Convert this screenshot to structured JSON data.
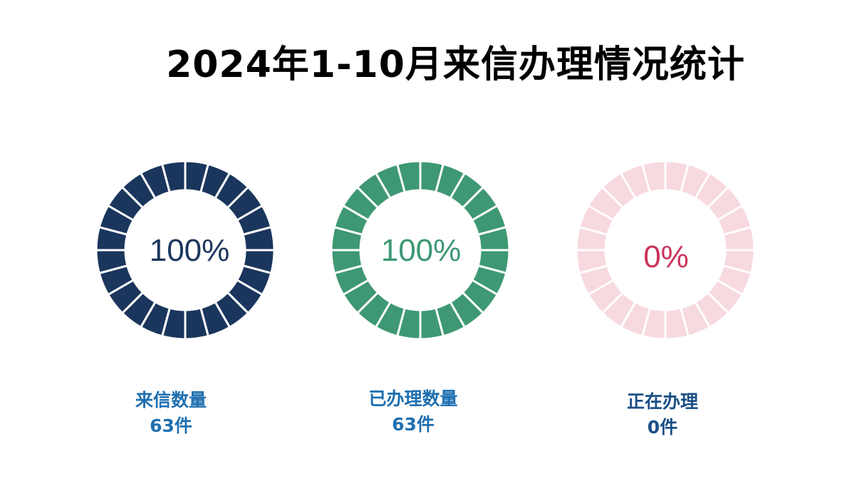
{
  "title": "2024年1-10月来信办理情况统计",
  "chart_data": [
    {
      "type": "donut",
      "value_percent": 100,
      "center_label": "100%",
      "label": "来信数量",
      "count_label": "63件",
      "fill_color": "#1b365d",
      "empty_color": "#f7d9e0",
      "segments": 24
    },
    {
      "type": "donut",
      "value_percent": 100,
      "center_label": "100%",
      "label": "已办理数量",
      "count_label": "63件",
      "fill_color": "#3d9873",
      "empty_color": "#f7d9e0",
      "segments": 24
    },
    {
      "type": "donut",
      "value_percent": 0,
      "center_label": "0%",
      "label": "正在办理",
      "count_label": "0件",
      "fill_color": "#c9335b",
      "empty_color": "#f7d9e0",
      "segments": 24
    }
  ],
  "colors": {
    "pct_navy": "#1b365d",
    "pct_green": "#3d9873",
    "pct_red": "#c9335b",
    "caption_blue": "#1e6fb0",
    "caption_navy": "#1b4e86"
  }
}
